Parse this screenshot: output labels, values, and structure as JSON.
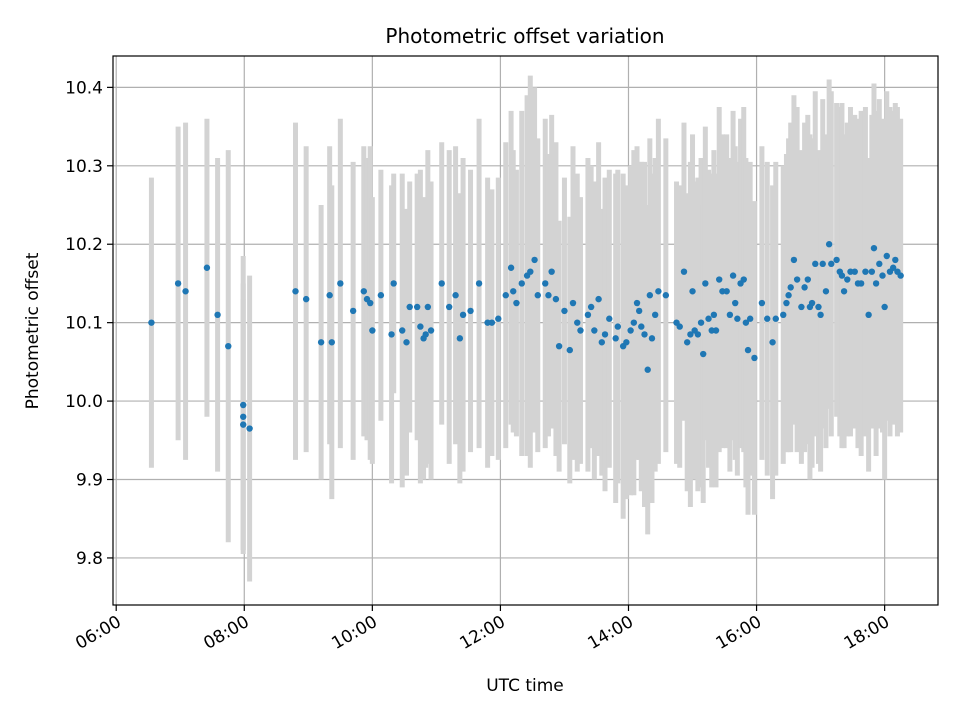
{
  "chart_data": {
    "type": "scatter",
    "title": "Photometric offset variation",
    "xlabel": "UTC time",
    "ylabel": "Photometric offset",
    "x_ticks": [
      "06:00",
      "08:00",
      "10:00",
      "12:00",
      "14:00",
      "16:00",
      "18:00"
    ],
    "y_ticks": [
      "9.8",
      "9.9",
      "10.0",
      "10.1",
      "10.2",
      "10.3",
      "10.4"
    ],
    "xlim": [
      "05:57",
      "18:50"
    ],
    "ylim": [
      9.74,
      10.44
    ],
    "grid": true,
    "legend": "none",
    "colors": {
      "points": "#1f77b4",
      "errorbars": "#d3d3d3",
      "grid": "#b0b0b0"
    },
    "series": [
      {
        "points": [
          {
            "x": "06:33",
            "y": 10.1,
            "yerr": 0.185
          },
          {
            "x": "06:58",
            "y": 10.15,
            "yerr": 0.2
          },
          {
            "x": "07:05",
            "y": 10.14,
            "yerr": 0.215
          },
          {
            "x": "07:25",
            "y": 10.17,
            "yerr": 0.19
          },
          {
            "x": "07:35",
            "y": 10.11,
            "yerr": 0.2
          },
          {
            "x": "07:45",
            "y": 10.07,
            "yerr": 0.25
          },
          {
            "x": "07:59",
            "y": 9.995,
            "yerr": 0.19
          },
          {
            "x": "07:59",
            "y": 9.98,
            "yerr": 0.17
          },
          {
            "x": "07:59",
            "y": 9.97,
            "yerr": 0.16
          },
          {
            "x": "08:05",
            "y": 9.965,
            "yerr": 0.195
          },
          {
            "x": "08:48",
            "y": 10.14,
            "yerr": 0.215
          },
          {
            "x": "08:58",
            "y": 10.13,
            "yerr": 0.195
          },
          {
            "x": "09:12",
            "y": 10.075,
            "yerr": 0.175
          },
          {
            "x": "09:20",
            "y": 10.135,
            "yerr": 0.19
          },
          {
            "x": "09:22",
            "y": 10.075,
            "yerr": 0.2
          },
          {
            "x": "09:30",
            "y": 10.15,
            "yerr": 0.21
          },
          {
            "x": "09:42",
            "y": 10.115,
            "yerr": 0.19
          },
          {
            "x": "09:52",
            "y": 10.14,
            "yerr": 0.185
          },
          {
            "x": "09:55",
            "y": 10.13,
            "yerr": 0.18
          },
          {
            "x": "09:58",
            "y": 10.125,
            "yerr": 0.2
          },
          {
            "x": "10:00",
            "y": 10.09,
            "yerr": 0.17
          },
          {
            "x": "10:08",
            "y": 10.135,
            "yerr": 0.16
          },
          {
            "x": "10:18",
            "y": 10.085,
            "yerr": 0.19
          },
          {
            "x": "10:20",
            "y": 10.15,
            "yerr": 0.14
          },
          {
            "x": "10:28",
            "y": 10.09,
            "yerr": 0.2
          },
          {
            "x": "10:32",
            "y": 10.075,
            "yerr": 0.17
          },
          {
            "x": "10:35",
            "y": 10.12,
            "yerr": 0.16
          },
          {
            "x": "10:42",
            "y": 10.12,
            "yerr": 0.17
          },
          {
            "x": "10:45",
            "y": 10.095,
            "yerr": 0.2
          },
          {
            "x": "10:48",
            "y": 10.08,
            "yerr": 0.18
          },
          {
            "x": "10:50",
            "y": 10.085,
            "yerr": 0.17
          },
          {
            "x": "10:52",
            "y": 10.12,
            "yerr": 0.2
          },
          {
            "x": "10:55",
            "y": 10.09,
            "yerr": 0.19
          },
          {
            "x": "11:05",
            "y": 10.15,
            "yerr": 0.18
          },
          {
            "x": "11:12",
            "y": 10.12,
            "yerr": 0.2
          },
          {
            "x": "11:18",
            "y": 10.135,
            "yerr": 0.19
          },
          {
            "x": "11:22",
            "y": 10.08,
            "yerr": 0.185
          },
          {
            "x": "11:25",
            "y": 10.11,
            "yerr": 0.2
          },
          {
            "x": "11:32",
            "y": 10.115,
            "yerr": 0.18
          },
          {
            "x": "11:40",
            "y": 10.15,
            "yerr": 0.21
          },
          {
            "x": "11:48",
            "y": 10.1,
            "yerr": 0.185
          },
          {
            "x": "11:52",
            "y": 10.1,
            "yerr": 0.17
          },
          {
            "x": "11:58",
            "y": 10.105,
            "yerr": 0.18
          },
          {
            "x": "12:05",
            "y": 10.135,
            "yerr": 0.195
          },
          {
            "x": "12:10",
            "y": 10.17,
            "yerr": 0.2
          },
          {
            "x": "12:12",
            "y": 10.14,
            "yerr": 0.18
          },
          {
            "x": "12:15",
            "y": 10.125,
            "yerr": 0.17
          },
          {
            "x": "12:20",
            "y": 10.15,
            "yerr": 0.22
          },
          {
            "x": "12:25",
            "y": 10.16,
            "yerr": 0.23
          },
          {
            "x": "12:28",
            "y": 10.165,
            "yerr": 0.25
          },
          {
            "x": "12:32",
            "y": 10.18,
            "yerr": 0.22
          },
          {
            "x": "12:35",
            "y": 10.135,
            "yerr": 0.2
          },
          {
            "x": "12:42",
            "y": 10.15,
            "yerr": 0.21
          },
          {
            "x": "12:45",
            "y": 10.135,
            "yerr": 0.18
          },
          {
            "x": "12:48",
            "y": 10.165,
            "yerr": 0.2
          },
          {
            "x": "12:52",
            "y": 10.13,
            "yerr": 0.2
          },
          {
            "x": "12:55",
            "y": 10.07,
            "yerr": 0.16
          },
          {
            "x": "13:00",
            "y": 10.115,
            "yerr": 0.17
          },
          {
            "x": "13:05",
            "y": 10.065,
            "yerr": 0.17
          },
          {
            "x": "13:08",
            "y": 10.125,
            "yerr": 0.2
          },
          {
            "x": "13:12",
            "y": 10.1,
            "yerr": 0.19
          },
          {
            "x": "13:15",
            "y": 10.09,
            "yerr": 0.17
          },
          {
            "x": "13:22",
            "y": 10.11,
            "yerr": 0.2
          },
          {
            "x": "13:25",
            "y": 10.12,
            "yerr": 0.18
          },
          {
            "x": "13:28",
            "y": 10.09,
            "yerr": 0.19
          },
          {
            "x": "13:32",
            "y": 10.13,
            "yerr": 0.2
          },
          {
            "x": "13:35",
            "y": 10.075,
            "yerr": 0.17
          },
          {
            "x": "13:38",
            "y": 10.085,
            "yerr": 0.2
          },
          {
            "x": "13:42",
            "y": 10.105,
            "yerr": 0.19
          },
          {
            "x": "13:48",
            "y": 10.08,
            "yerr": 0.21
          },
          {
            "x": "13:50",
            "y": 10.095,
            "yerr": 0.2
          },
          {
            "x": "13:55",
            "y": 10.07,
            "yerr": 0.22
          },
          {
            "x": "13:58",
            "y": 10.075,
            "yerr": 0.2
          },
          {
            "x": "14:02",
            "y": 10.09,
            "yerr": 0.21
          },
          {
            "x": "14:05",
            "y": 10.1,
            "yerr": 0.22
          },
          {
            "x": "14:08",
            "y": 10.125,
            "yerr": 0.2
          },
          {
            "x": "14:10",
            "y": 10.115,
            "yerr": 0.19
          },
          {
            "x": "14:12",
            "y": 10.095,
            "yerr": 0.21
          },
          {
            "x": "14:15",
            "y": 10.085,
            "yerr": 0.22
          },
          {
            "x": "14:18",
            "y": 10.04,
            "yerr": 0.21
          },
          {
            "x": "14:20",
            "y": 10.135,
            "yerr": 0.2
          },
          {
            "x": "14:22",
            "y": 10.08,
            "yerr": 0.21
          },
          {
            "x": "14:25",
            "y": 10.11,
            "yerr": 0.2
          },
          {
            "x": "14:28",
            "y": 10.14,
            "yerr": 0.22
          },
          {
            "x": "14:35",
            "y": 10.135,
            "yerr": 0.2
          },
          {
            "x": "14:45",
            "y": 10.1,
            "yerr": 0.18
          },
          {
            "x": "14:48",
            "y": 10.095,
            "yerr": 0.18
          },
          {
            "x": "14:52",
            "y": 10.165,
            "yerr": 0.19
          },
          {
            "x": "14:55",
            "y": 10.075,
            "yerr": 0.19
          },
          {
            "x": "14:58",
            "y": 10.085,
            "yerr": 0.22
          },
          {
            "x": "15:00",
            "y": 10.14,
            "yerr": 0.2
          },
          {
            "x": "15:02",
            "y": 10.09,
            "yerr": 0.19
          },
          {
            "x": "15:05",
            "y": 10.085,
            "yerr": 0.2
          },
          {
            "x": "15:08",
            "y": 10.1,
            "yerr": 0.21
          },
          {
            "x": "15:10",
            "y": 10.06,
            "yerr": 0.19
          },
          {
            "x": "15:12",
            "y": 10.15,
            "yerr": 0.2
          },
          {
            "x": "15:15",
            "y": 10.105,
            "yerr": 0.19
          },
          {
            "x": "15:18",
            "y": 10.09,
            "yerr": 0.2
          },
          {
            "x": "15:20",
            "y": 10.11,
            "yerr": 0.21
          },
          {
            "x": "15:22",
            "y": 10.09,
            "yerr": 0.2
          },
          {
            "x": "15:25",
            "y": 10.155,
            "yerr": 0.22
          },
          {
            "x": "15:28",
            "y": 10.14,
            "yerr": 0.2
          },
          {
            "x": "15:32",
            "y": 10.14,
            "yerr": 0.2
          },
          {
            "x": "15:35",
            "y": 10.11,
            "yerr": 0.2
          },
          {
            "x": "15:38",
            "y": 10.16,
            "yerr": 0.21
          },
          {
            "x": "15:40",
            "y": 10.125,
            "yerr": 0.2
          },
          {
            "x": "15:42",
            "y": 10.105,
            "yerr": 0.2
          },
          {
            "x": "15:45",
            "y": 10.15,
            "yerr": 0.21
          },
          {
            "x": "15:48",
            "y": 10.155,
            "yerr": 0.22
          },
          {
            "x": "15:50",
            "y": 10.1,
            "yerr": 0.21
          },
          {
            "x": "15:52",
            "y": 10.065,
            "yerr": 0.21
          },
          {
            "x": "15:54",
            "y": 10.105,
            "yerr": 0.2
          },
          {
            "x": "15:58",
            "y": 10.055,
            "yerr": 0.2
          },
          {
            "x": "16:05",
            "y": 10.125,
            "yerr": 0.2
          },
          {
            "x": "16:10",
            "y": 10.105,
            "yerr": 0.2
          },
          {
            "x": "16:15",
            "y": 10.075,
            "yerr": 0.2
          },
          {
            "x": "16:18",
            "y": 10.105,
            "yerr": 0.2
          },
          {
            "x": "16:25",
            "y": 10.11,
            "yerr": 0.19
          },
          {
            "x": "16:28",
            "y": 10.125,
            "yerr": 0.19
          },
          {
            "x": "16:30",
            "y": 10.135,
            "yerr": 0.2
          },
          {
            "x": "16:32",
            "y": 10.145,
            "yerr": 0.21
          },
          {
            "x": "16:35",
            "y": 10.18,
            "yerr": 0.21
          },
          {
            "x": "16:38",
            "y": 10.155,
            "yerr": 0.22
          },
          {
            "x": "16:42",
            "y": 10.12,
            "yerr": 0.2
          },
          {
            "x": "16:45",
            "y": 10.145,
            "yerr": 0.21
          },
          {
            "x": "16:48",
            "y": 10.155,
            "yerr": 0.21
          },
          {
            "x": "16:50",
            "y": 10.12,
            "yerr": 0.22
          },
          {
            "x": "16:52",
            "y": 10.125,
            "yerr": 0.21
          },
          {
            "x": "16:55",
            "y": 10.175,
            "yerr": 0.22
          },
          {
            "x": "16:58",
            "y": 10.12,
            "yerr": 0.2
          },
          {
            "x": "17:00",
            "y": 10.11,
            "yerr": 0.2
          },
          {
            "x": "17:02",
            "y": 10.175,
            "yerr": 0.21
          },
          {
            "x": "17:05",
            "y": 10.14,
            "yerr": 0.2
          },
          {
            "x": "17:08",
            "y": 10.2,
            "yerr": 0.21
          },
          {
            "x": "17:10",
            "y": 10.175,
            "yerr": 0.22
          },
          {
            "x": "17:15",
            "y": 10.18,
            "yerr": 0.2
          },
          {
            "x": "17:18",
            "y": 10.165,
            "yerr": 0.21
          },
          {
            "x": "17:20",
            "y": 10.16,
            "yerr": 0.22
          },
          {
            "x": "17:22",
            "y": 10.14,
            "yerr": 0.2
          },
          {
            "x": "17:25",
            "y": 10.155,
            "yerr": 0.2
          },
          {
            "x": "17:28",
            "y": 10.165,
            "yerr": 0.21
          },
          {
            "x": "17:32",
            "y": 10.165,
            "yerr": 0.2
          },
          {
            "x": "17:35",
            "y": 10.15,
            "yerr": 0.21
          },
          {
            "x": "17:38",
            "y": 10.15,
            "yerr": 0.22
          },
          {
            "x": "17:42",
            "y": 10.165,
            "yerr": 0.21
          },
          {
            "x": "17:45",
            "y": 10.11,
            "yerr": 0.2
          },
          {
            "x": "17:48",
            "y": 10.165,
            "yerr": 0.2
          },
          {
            "x": "17:50",
            "y": 10.195,
            "yerr": 0.21
          },
          {
            "x": "17:52",
            "y": 10.15,
            "yerr": 0.22
          },
          {
            "x": "17:55",
            "y": 10.175,
            "yerr": 0.21
          },
          {
            "x": "17:58",
            "y": 10.16,
            "yerr": 0.2
          },
          {
            "x": "18:00",
            "y": 10.12,
            "yerr": 0.22
          },
          {
            "x": "18:02",
            "y": 10.185,
            "yerr": 0.21
          },
          {
            "x": "18:05",
            "y": 10.165,
            "yerr": 0.21
          },
          {
            "x": "18:08",
            "y": 10.17,
            "yerr": 0.2
          },
          {
            "x": "18:10",
            "y": 10.18,
            "yerr": 0.2
          },
          {
            "x": "18:12",
            "y": 10.165,
            "yerr": 0.21
          },
          {
            "x": "18:15",
            "y": 10.16,
            "yerr": 0.2
          }
        ]
      }
    ]
  }
}
